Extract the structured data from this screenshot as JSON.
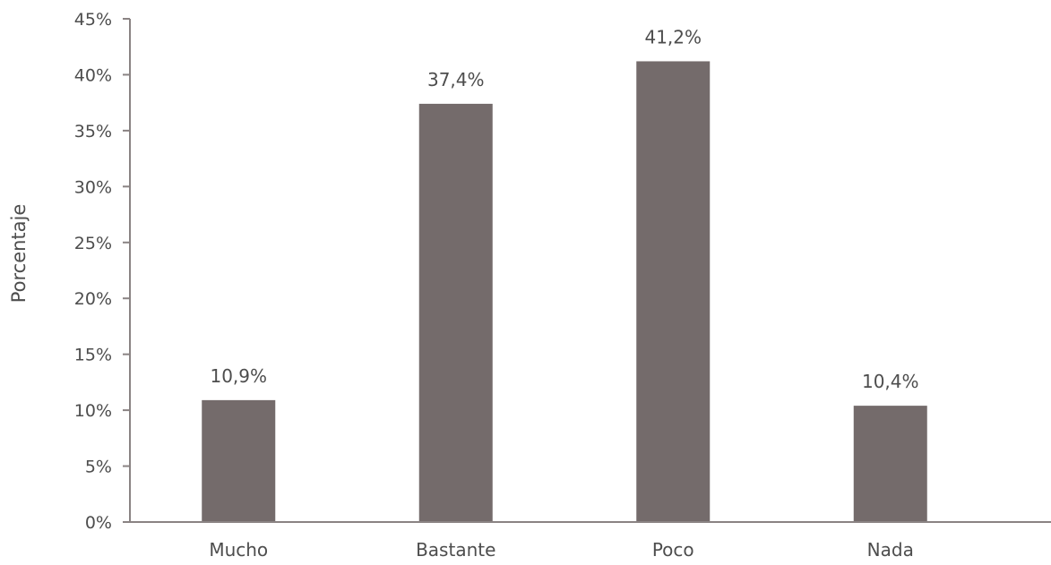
{
  "chart_data": {
    "type": "bar",
    "title": "",
    "xlabel": "",
    "ylabel": "Porcentaje",
    "categories": [
      "Mucho",
      "Bastante",
      "Poco",
      "Nada"
    ],
    "values": [
      10.9,
      37.4,
      41.2,
      10.4
    ],
    "data_labels": [
      "10,9%",
      "37,4%",
      "41,2%",
      "10,4%"
    ],
    "ylim": [
      0,
      45
    ],
    "yticks": [
      0,
      5,
      10,
      15,
      20,
      25,
      30,
      35,
      40,
      45
    ],
    "ytick_labels": [
      "0%",
      "5%",
      "10%",
      "15%",
      "20%",
      "25%",
      "30%",
      "35%",
      "40%",
      "45%"
    ],
    "grid": false,
    "legend": "none",
    "bar_color": "#746b6b",
    "axis_color": "#8a8383",
    "text_color": "#4d4d4d"
  }
}
